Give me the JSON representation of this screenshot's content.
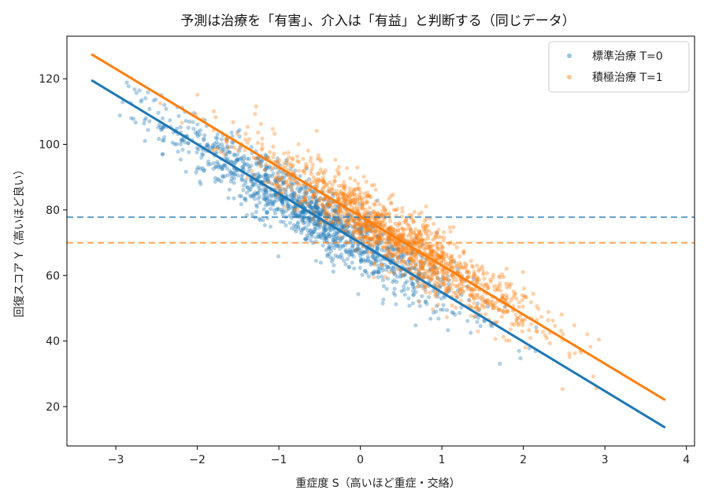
{
  "chart_data": {
    "type": "scatter",
    "title": "予測は治療を「有害」、介入は「有益」と判断する（同じデータ）",
    "xlabel": "重症度 S（高いほど重症・交絡）",
    "ylabel": "回復スコア Y（高いほど良い）",
    "xlim": [
      -3.6,
      4.1
    ],
    "ylim": [
      8,
      133
    ],
    "xticks": [
      -3,
      -2,
      -1,
      0,
      1,
      2,
      3,
      4
    ],
    "xtick_labels": [
      "−3",
      "−2",
      "−1",
      "0",
      "1",
      "2",
      "3",
      "4"
    ],
    "yticks": [
      20,
      40,
      60,
      80,
      100,
      120
    ],
    "ytick_labels": [
      "20",
      "40",
      "60",
      "80",
      "100",
      "120"
    ],
    "grid": false,
    "legend": "top-right",
    "series": [
      {
        "name": "標準治療 T=0",
        "color": "#1f77b4",
        "fit_line": {
          "x": [
            -3.3,
            3.74
          ],
          "y": [
            119.6,
            13.6
          ]
        },
        "mean_line_y": 77.8,
        "cloud": {
          "x_center": -0.55,
          "x_sd": 0.9,
          "intercept": 70.0,
          "slope": -15.06,
          "noise_sd": 5.0,
          "n": 1400,
          "x_min": -3.3,
          "x_max": 2.2
        }
      },
      {
        "name": "積極治療 T=1",
        "color": "#ff7f0e",
        "fit_line": {
          "x": [
            -3.3,
            3.74
          ],
          "y": [
            127.5,
            22.0
          ]
        },
        "mean_line_y": 70.0,
        "cloud": {
          "x_center": 0.45,
          "x_sd": 0.85,
          "intercept": 78.0,
          "slope": -15.0,
          "noise_sd": 5.0,
          "n": 1500,
          "x_min": -2.7,
          "x_max": 3.75
        }
      }
    ]
  }
}
